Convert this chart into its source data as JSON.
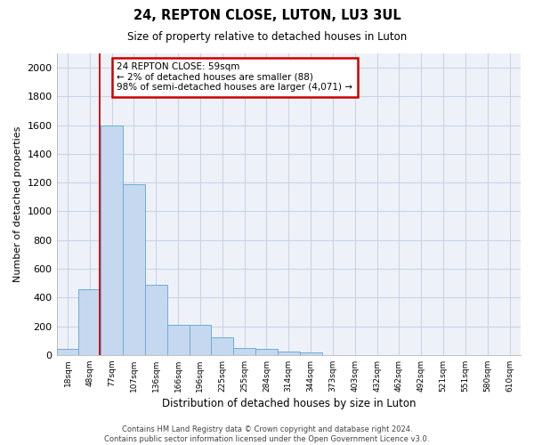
{
  "title": "24, REPTON CLOSE, LUTON, LU3 3UL",
  "subtitle": "Size of property relative to detached houses in Luton",
  "xlabel": "Distribution of detached houses by size in Luton",
  "ylabel": "Number of detached properties",
  "categories": [
    "18sqm",
    "48sqm",
    "77sqm",
    "107sqm",
    "136sqm",
    "166sqm",
    "196sqm",
    "225sqm",
    "255sqm",
    "284sqm",
    "314sqm",
    "344sqm",
    "373sqm",
    "403sqm",
    "432sqm",
    "462sqm",
    "492sqm",
    "521sqm",
    "551sqm",
    "580sqm",
    "610sqm"
  ],
  "values": [
    40,
    460,
    1600,
    1190,
    490,
    210,
    210,
    125,
    50,
    40,
    25,
    15,
    0,
    0,
    0,
    0,
    0,
    0,
    0,
    0,
    0
  ],
  "bar_color": "#c5d8ef",
  "bar_edgecolor": "#6baed6",
  "bar_linewidth": 0.7,
  "ylim": [
    0,
    2100
  ],
  "yticks": [
    0,
    200,
    400,
    600,
    800,
    1000,
    1200,
    1400,
    1600,
    1800,
    2000
  ],
  "vline_x": 1.45,
  "vline_color": "#cc0000",
  "annotation_line1": "24 REPTON CLOSE: 59sqm",
  "annotation_line2": "← 2% of detached houses are smaller (88)",
  "annotation_line3": "98% of semi-detached houses are larger (4,071) →",
  "annotation_box_color": "#cc0000",
  "footer_text": "Contains HM Land Registry data © Crown copyright and database right 2024.\nContains public sector information licensed under the Open Government Licence v3.0.",
  "background_color": "#ffffff",
  "plot_bg_color": "#eef2f8",
  "grid_color": "#c8d4e8"
}
